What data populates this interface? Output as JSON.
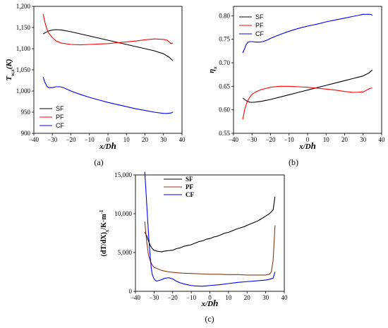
{
  "chart_data": [
    {
      "id": "a",
      "type": "line",
      "panel_label": "(a)",
      "xlabel": "x/D",
      "xlabel_sub": "h",
      "ylabel": "T",
      "ylabel_sub": "w,x",
      "ylabel_unit": "(K)",
      "xlim": [
        -40,
        40
      ],
      "ylim": [
        900,
        1200
      ],
      "xticks": [
        -40,
        -30,
        -20,
        -10,
        0,
        10,
        20,
        30,
        40
      ],
      "yticks": [
        900,
        950,
        1000,
        1050,
        1100,
        1150,
        1200
      ],
      "ytick_labels": [
        "900",
        "950",
        "1,000",
        "1,050",
        "1,100",
        "1,150",
        "1,200"
      ],
      "legend_position": "bottom-left",
      "series": [
        {
          "name": "SF",
          "color": "#000000",
          "x": [
            -35,
            -32,
            -30,
            -28,
            -25,
            -20,
            -15,
            -10,
            -5,
            0,
            5,
            10,
            15,
            20,
            25,
            30,
            33,
            35
          ],
          "y": [
            1135,
            1142,
            1144,
            1145,
            1144,
            1140,
            1135,
            1130,
            1125,
            1120,
            1115,
            1110,
            1105,
            1100,
            1095,
            1088,
            1080,
            1072
          ]
        },
        {
          "name": "PF",
          "color": "#ff0000",
          "x": [
            -35,
            -34,
            -33,
            -32,
            -30,
            -28,
            -25,
            -20,
            -15,
            -10,
            -5,
            0,
            5,
            10,
            15,
            20,
            25,
            30,
            32,
            33,
            34,
            35
          ],
          "y": [
            1182,
            1162,
            1147,
            1137,
            1126,
            1118,
            1113,
            1110,
            1109,
            1110,
            1111,
            1112,
            1114,
            1116,
            1118,
            1121,
            1123,
            1122,
            1120,
            1116,
            1112,
            1113
          ]
        },
        {
          "name": "CF",
          "color": "#0000ff",
          "x": [
            -35,
            -34,
            -33,
            -32,
            -30,
            -28,
            -26,
            -24,
            -20,
            -15,
            -10,
            -5,
            0,
            5,
            10,
            15,
            20,
            25,
            30,
            32,
            34,
            35
          ],
          "y": [
            1033,
            1020,
            1011,
            1008,
            1008,
            1010,
            1010,
            1008,
            1000,
            992,
            985,
            979,
            973,
            968,
            963,
            958,
            954,
            950,
            947,
            947,
            948,
            950
          ]
        }
      ]
    },
    {
      "id": "b",
      "type": "line",
      "panel_label": "(b)",
      "xlabel": "x/D",
      "xlabel_sub": "h",
      "ylabel": "η",
      "ylabel_sub": "x",
      "ylabel_unit": "",
      "xlim": [
        -40,
        40
      ],
      "ylim": [
        0.55,
        0.82
      ],
      "xticks": [
        -40,
        -30,
        -20,
        -10,
        0,
        10,
        20,
        30,
        40
      ],
      "yticks": [
        0.55,
        0.6,
        0.65,
        0.7,
        0.75,
        0.8
      ],
      "ytick_labels": [
        "0.55",
        "0.60",
        "0.65",
        "0.70",
        "0.75",
        "0.80"
      ],
      "legend_position": "top-left",
      "series": [
        {
          "name": "SF",
          "color": "#000000",
          "x": [
            -35,
            -33,
            -31,
            -29,
            -27,
            -25,
            -20,
            -15,
            -10,
            -5,
            0,
            5,
            10,
            15,
            20,
            25,
            30,
            33,
            35
          ],
          "y": [
            0.625,
            0.619,
            0.616,
            0.616,
            0.617,
            0.618,
            0.622,
            0.627,
            0.632,
            0.637,
            0.642,
            0.647,
            0.652,
            0.657,
            0.662,
            0.667,
            0.672,
            0.678,
            0.685
          ]
        },
        {
          "name": "PF",
          "color": "#ff0000",
          "x": [
            -35,
            -34,
            -33,
            -32,
            -31,
            -30,
            -28,
            -25,
            -20,
            -15,
            -10,
            -5,
            0,
            5,
            10,
            15,
            20,
            25,
            30,
            32,
            34,
            35
          ],
          "y": [
            0.58,
            0.6,
            0.613,
            0.622,
            0.628,
            0.633,
            0.638,
            0.643,
            0.648,
            0.65,
            0.65,
            0.649,
            0.648,
            0.646,
            0.644,
            0.642,
            0.639,
            0.637,
            0.638,
            0.642,
            0.646,
            0.646
          ]
        },
        {
          "name": "CF",
          "color": "#0000ff",
          "x": [
            -35,
            -34,
            -33,
            -32,
            -31,
            -30,
            -28,
            -26,
            -24,
            -22,
            -20,
            -15,
            -10,
            -5,
            0,
            5,
            10,
            15,
            20,
            25,
            30,
            32,
            34,
            35
          ],
          "y": [
            0.721,
            0.73,
            0.74,
            0.744,
            0.745,
            0.745,
            0.744,
            0.744,
            0.745,
            0.748,
            0.752,
            0.76,
            0.767,
            0.773,
            0.778,
            0.782,
            0.787,
            0.791,
            0.795,
            0.799,
            0.803,
            0.803,
            0.803,
            0.801
          ]
        }
      ]
    },
    {
      "id": "c",
      "type": "line",
      "panel_label": "(c)",
      "xlabel": "x/D",
      "xlabel_sub": "h",
      "ylabel": "(dT/dX)",
      "ylabel_sub": "x",
      "ylabel_unit": "/K·m",
      "ylabel_sup": "-1",
      "xlim": [
        -40,
        40
      ],
      "ylim": [
        0,
        15000
      ],
      "xticks": [
        -40,
        -30,
        -20,
        -10,
        0,
        10,
        20,
        30,
        40
      ],
      "yticks": [
        0,
        5000,
        10000,
        15000
      ],
      "ytick_labels": [
        "0",
        "5,000",
        "10,000",
        "15,000"
      ],
      "legend_position": "top-center",
      "series": [
        {
          "name": "SF",
          "color": "#000000",
          "x": [
            -35,
            -34,
            -33,
            -32,
            -31,
            -30,
            -28,
            -26,
            -24,
            -22,
            -20,
            -18,
            -16,
            -14,
            -12,
            -10,
            -8,
            -6,
            -4,
            -2,
            0,
            2,
            4,
            6,
            8,
            10,
            12,
            14,
            16,
            18,
            20,
            22,
            24,
            26,
            28,
            30,
            32,
            34,
            35
          ],
          "y": [
            7600,
            7200,
            6500,
            5900,
            5500,
            5300,
            5150,
            5100,
            5200,
            5250,
            5300,
            5500,
            5600,
            5800,
            5900,
            6000,
            6200,
            6400,
            6500,
            6700,
            6800,
            7000,
            7100,
            7300,
            7500,
            7600,
            7800,
            8000,
            8150,
            8300,
            8500,
            8700,
            8900,
            9100,
            9400,
            9700,
            10000,
            10500,
            12200
          ]
        },
        {
          "name": "PF",
          "color": "#8b3a0f",
          "x": [
            -35,
            -34,
            -33,
            -32,
            -31,
            -30,
            -28,
            -26,
            -24,
            -22,
            -20,
            -15,
            -10,
            -5,
            0,
            5,
            10,
            15,
            20,
            25,
            30,
            32,
            33,
            34,
            35
          ],
          "y": [
            9000,
            6500,
            4700,
            3900,
            3400,
            3100,
            2900,
            2700,
            2600,
            2500,
            2450,
            2350,
            2300,
            2250,
            2200,
            2200,
            2150,
            2150,
            2100,
            2100,
            2100,
            2200,
            2500,
            4000,
            8500
          ]
        },
        {
          "name": "CF",
          "color": "#0000ff",
          "x": [
            -35,
            -34.5,
            -34,
            -33.5,
            -33,
            -32.5,
            -32,
            -31.5,
            -31,
            -30,
            -29,
            -28,
            -26,
            -24,
            -22,
            -20,
            -18,
            -16,
            -14,
            -12,
            -10,
            -8,
            -6,
            -4,
            -2,
            0,
            5,
            10,
            15,
            20,
            25,
            30,
            32,
            34,
            35
          ],
          "y": [
            15400,
            13500,
            11500,
            9500,
            7500,
            5800,
            4300,
            3000,
            2200,
            1600,
            1350,
            1350,
            1500,
            1700,
            1750,
            1600,
            1300,
            1100,
            950,
            850,
            750,
            700,
            680,
            650,
            700,
            750,
            850,
            1000,
            1150,
            1250,
            1350,
            1450,
            1550,
            1700,
            2500
          ]
        }
      ]
    }
  ]
}
